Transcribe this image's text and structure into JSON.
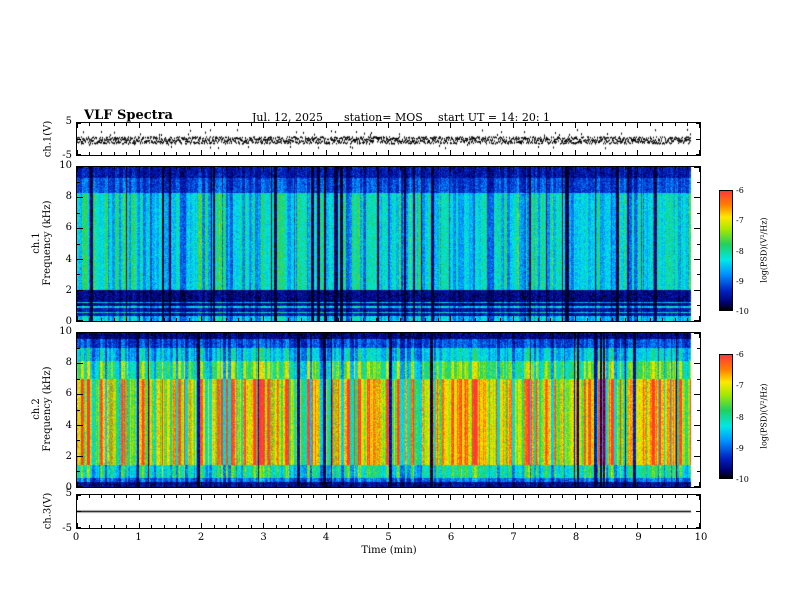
{
  "bg": "#ffffff",
  "title": "VLF Spectra",
  "header": {
    "date": "Jul. 12, 2025",
    "station": "station= MOS",
    "start_ut": "start UT =  14: 20: 1"
  },
  "axes": {
    "x": {
      "label": "Time (min)",
      "ticks": [
        0,
        1,
        2,
        3,
        4,
        5,
        6,
        7,
        8,
        9,
        10
      ],
      "min": 0,
      "max": 10
    },
    "freq": {
      "ticks": [
        0,
        2,
        4,
        6,
        8,
        10
      ],
      "min": 0,
      "max": 10
    },
    "volt": {
      "ticks": [
        5,
        -5
      ],
      "min": -5,
      "max": 5
    },
    "labels": {
      "ch1v": "ch.1(V)",
      "spec1_line1": "ch.1",
      "spec1_line2": "Frequency (kHz)",
      "spec2_line1": "ch.2",
      "spec2_line2": "Frequency (kHz)",
      "ch3v": "ch.3(V)"
    }
  },
  "colorbar": {
    "label": "log(PSD)(V²/Hz)",
    "ticks": [
      -6,
      -7,
      -8,
      -9,
      -10
    ],
    "max": -6,
    "min": -10,
    "stops": [
      {
        "p": 0.0,
        "c": "#000000"
      },
      {
        "p": 0.06,
        "c": "#000070"
      },
      {
        "p": 0.16,
        "c": "#0020c0"
      },
      {
        "p": 0.3,
        "c": "#0090ff"
      },
      {
        "p": 0.42,
        "c": "#00e8e8"
      },
      {
        "p": 0.55,
        "c": "#20d060"
      },
      {
        "p": 0.68,
        "c": "#a8e800"
      },
      {
        "p": 0.78,
        "c": "#ffe800"
      },
      {
        "p": 0.88,
        "c": "#ff8000"
      },
      {
        "p": 1.0,
        "c": "#ff3838"
      }
    ]
  },
  "chart_data": [
    {
      "type": "line",
      "name": "ch.1 voltage",
      "ylabel": "ch.1(V)",
      "xlabel": "Time (min)",
      "xlim": [
        0,
        10
      ],
      "ylim": [
        -5,
        5
      ],
      "description": "Dense noisy trace fluctuating roughly ±1 V about 0 V for the whole ~9.8 min record."
    },
    {
      "type": "heatmap",
      "name": "ch.1 spectrogram",
      "ylabel": "Frequency (kHz)",
      "xlabel": "Time (min)",
      "xlim": [
        0,
        10
      ],
      "ylim": [
        0,
        10
      ],
      "zlabel": "log(PSD)(V²/Hz)",
      "zlim": [
        -10,
        -6
      ],
      "description": "Dense vertical sferic striations; mostly cyan-green (~10^-8) between 2 and 8 kHz separated by dark-blue/black gaps; darker blue/black above 8.5 kHz; a near-black low-power band at ~1-2 kHz; thin bright horizontal lines near 0.5-1.2 kHz and along the bottom edge."
    },
    {
      "type": "heatmap",
      "name": "ch.2 spectrogram",
      "ylabel": "Frequency (kHz)",
      "xlabel": "Time (min)",
      "xlim": [
        0,
        10
      ],
      "ylim": [
        0,
        10
      ],
      "zlabel": "log(PSD)(V²/Hz)",
      "zlim": [
        -10,
        -6
      ],
      "description": "High-power red/orange band (~10^-6.5) from ~1.5 to 7 kHz with strong vertical striation and occasional dark column gaps; yellow-green near 7-8.5 kHz; blue fading to black above 9 kHz; dark band below ~0.5 kHz."
    },
    {
      "type": "line",
      "name": "ch.3 voltage",
      "ylabel": "ch.3(V)",
      "xlabel": "Time (min)",
      "xlim": [
        0,
        10
      ],
      "ylim": [
        -5,
        5
      ],
      "description": "Flat line at 0 V (no signal) across the record."
    }
  ]
}
